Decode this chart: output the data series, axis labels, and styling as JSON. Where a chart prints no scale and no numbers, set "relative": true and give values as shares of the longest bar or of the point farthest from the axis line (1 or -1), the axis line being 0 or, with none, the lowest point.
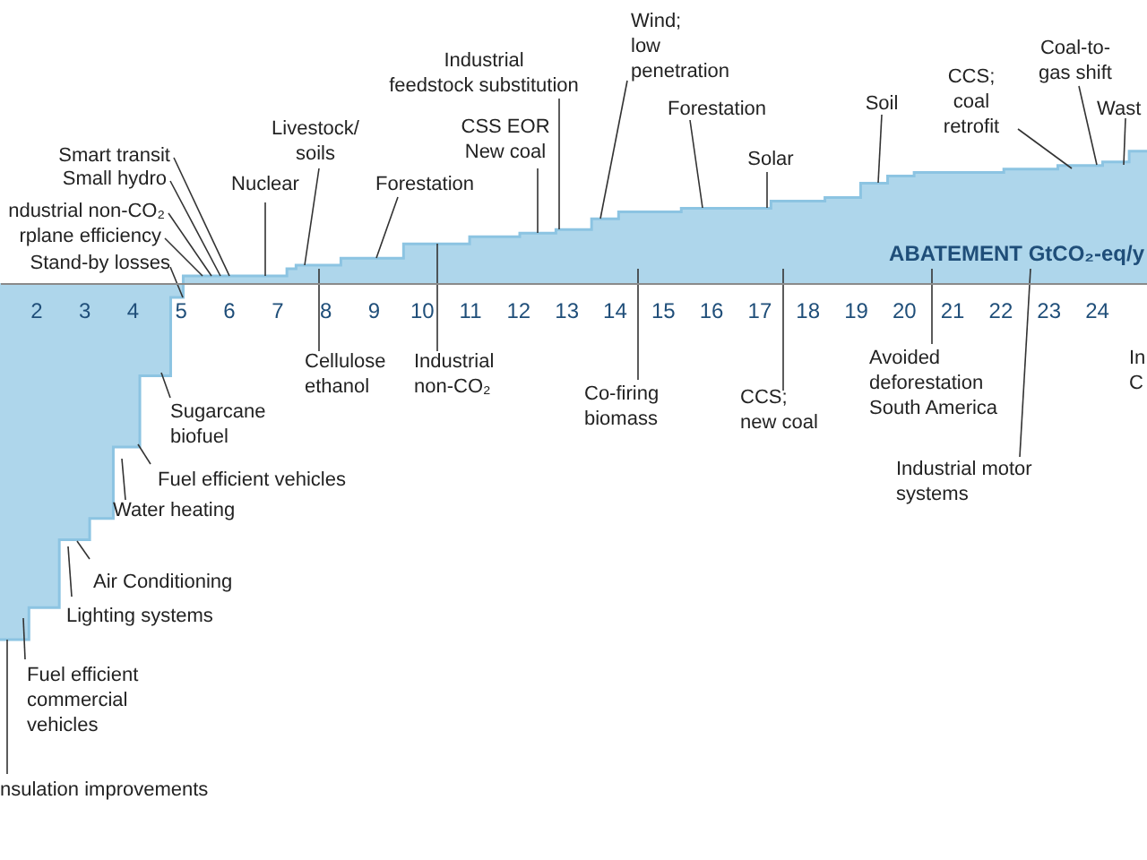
{
  "chart_data": {
    "type": "step",
    "relative": true,
    "xlabel": "ABATEMENT GtCO₂-eq/y",
    "xlim": [
      1.26,
      25.05
    ],
    "xticks": [
      2,
      3,
      4,
      5,
      6,
      7,
      8,
      9,
      10,
      11,
      12,
      13,
      14,
      15,
      16,
      17,
      18,
      19,
      20,
      21,
      22,
      23,
      24
    ],
    "series": [
      {
        "color": "#8cc4e2",
        "x": [
          1.26,
          1.86,
          2.49,
          3.12,
          3.61,
          4.16,
          4.8,
          5.06,
          7.21,
          7.4,
          8.33,
          9.63,
          11.0,
          12.04,
          12.79,
          13.53,
          14.09,
          15.39,
          17.25,
          18.37,
          19.11,
          19.67,
          20.22,
          22.08,
          23.2,
          24.13,
          24.68,
          25.05
        ],
        "values": [
          -1.0,
          -0.91,
          -0.72,
          -0.66,
          -0.46,
          -0.26,
          -0.04,
          0.02,
          0.04,
          0.05,
          0.07,
          0.11,
          0.13,
          0.14,
          0.15,
          0.18,
          0.2,
          0.21,
          0.23,
          0.24,
          0.28,
          0.3,
          0.31,
          0.32,
          0.33,
          0.34,
          0.37,
          0.37
        ]
      }
    ],
    "annotations": [
      "Smart transit",
      "Small hydro",
      "ndustrial non-CO₂",
      "rplane efficiency",
      "Stand-by losses",
      "Nuclear",
      "Livestock/\nsoils",
      "Forestation",
      "Cellulose\nethanol",
      "Industrial\nnon-CO₂",
      "Industrial\nfeedstock substitution",
      "CSS EOR\nNew coal",
      "Wind;\nlow\npenetration",
      "Forestation",
      "Solar",
      "Soil",
      "CCS;\ncoal\nretrofit",
      "Coal-to-\ngas shift",
      "Wast",
      "Co-firing\nbiomass",
      "CCS;\nnew coal",
      "Avoided\ndeforestation\nSouth America",
      "Industrial motor\nsystems",
      "In\nC",
      "Sugarcane\nbiofuel",
      "Fuel efficient vehicles",
      "Water heating",
      "Air Conditioning",
      "Lighting systems",
      "Fuel efficient\ncommercial\nvehicles",
      "nsulation improvements"
    ]
  }
}
